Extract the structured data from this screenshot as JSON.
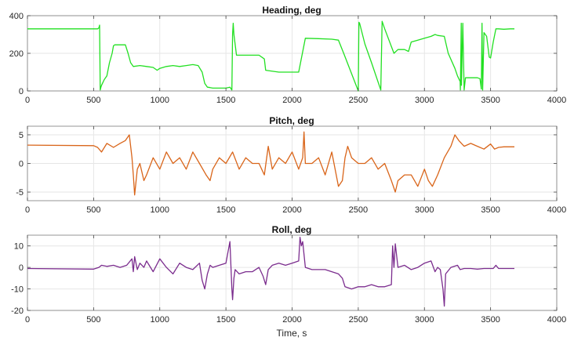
{
  "chart_data": [
    {
      "type": "line",
      "title": "Heading, deg",
      "xlabel": "",
      "ylabel": "",
      "xlim": [
        0,
        4000
      ],
      "ylim": [
        0,
        400
      ],
      "xticks": [
        0,
        500,
        1000,
        1500,
        2000,
        2500,
        3000,
        3500,
        4000
      ],
      "yticks": [
        0,
        200,
        400
      ],
      "grid": true,
      "color": "#22e022",
      "series": [
        {
          "name": "Heading",
          "x": [
            0,
            530,
            540,
            545,
            550,
            555,
            560,
            580,
            600,
            620,
            640,
            650,
            660,
            700,
            740,
            760,
            780,
            800,
            850,
            900,
            950,
            980,
            1000,
            1050,
            1100,
            1150,
            1200,
            1250,
            1290,
            1320,
            1340,
            1360,
            1380,
            1400,
            1450,
            1500,
            1530,
            1545,
            1550,
            1555,
            1560,
            1580,
            1600,
            1750,
            1790,
            1800,
            1900,
            1950,
            1960,
            2050,
            2100,
            2200,
            2300,
            2350,
            2390,
            2500,
            2505,
            2510,
            2550,
            2600,
            2670,
            2680,
            2700,
            2770,
            2800,
            2850,
            2880,
            2900,
            2950,
            3000,
            3050,
            3080,
            3100,
            3150,
            3180,
            3230,
            3250,
            3270,
            3272,
            3278,
            3280,
            3290,
            3300,
            3310,
            3330,
            3350,
            3400,
            3420,
            3430,
            3435,
            3440,
            3450,
            3470,
            3490,
            3500,
            3520,
            3540,
            3560,
            3600,
            3650,
            3680
          ],
          "y": [
            330,
            330,
            335,
            350,
            5,
            20,
            30,
            60,
            80,
            150,
            200,
            240,
            245,
            245,
            245,
            200,
            150,
            130,
            135,
            130,
            125,
            110,
            120,
            130,
            135,
            130,
            135,
            140,
            135,
            100,
            40,
            20,
            18,
            15,
            15,
            15,
            20,
            5,
            300,
            360,
            300,
            190,
            190,
            190,
            170,
            110,
            100,
            100,
            100,
            100,
            280,
            278,
            275,
            270,
            200,
            0,
            365,
            360,
            250,
            150,
            5,
            370,
            330,
            200,
            220,
            220,
            210,
            260,
            270,
            280,
            290,
            300,
            295,
            290,
            200,
            120,
            80,
            50,
            5,
            360,
            30,
            360,
            5,
            70,
            70,
            70,
            70,
            65,
            10,
            360,
            5,
            310,
            290,
            180,
            175,
            260,
            330,
            330,
            328,
            330,
            330
          ]
        }
      ]
    },
    {
      "type": "line",
      "title": "Pitch, deg",
      "xlabel": "",
      "ylabel": "",
      "xlim": [
        0,
        4000
      ],
      "ylim": [
        -6.5,
        6.5
      ],
      "xticks": [
        0,
        500,
        1000,
        1500,
        2000,
        2500,
        3000,
        3500,
        4000
      ],
      "yticks": [
        -5,
        0,
        5
      ],
      "grid": true,
      "color": "#d9651a",
      "series": [
        {
          "name": "Pitch",
          "x": [
            0,
            500,
            530,
            560,
            600,
            650,
            700,
            740,
            770,
            790,
            800,
            810,
            830,
            850,
            880,
            900,
            950,
            1000,
            1050,
            1100,
            1150,
            1200,
            1250,
            1300,
            1350,
            1380,
            1400,
            1450,
            1500,
            1550,
            1600,
            1650,
            1700,
            1750,
            1790,
            1820,
            1850,
            1900,
            1950,
            2000,
            2050,
            2080,
            2090,
            2100,
            2150,
            2200,
            2250,
            2300,
            2350,
            2380,
            2400,
            2420,
            2450,
            2500,
            2550,
            2600,
            2650,
            2700,
            2750,
            2780,
            2800,
            2850,
            2900,
            2950,
            3000,
            3030,
            3060,
            3100,
            3150,
            3200,
            3230,
            3260,
            3300,
            3350,
            3400,
            3450,
            3500,
            3530,
            3560,
            3600,
            3650,
            3680
          ],
          "y": [
            3.2,
            3.1,
            2.8,
            2,
            3.5,
            2.8,
            3.5,
            4,
            5,
            1,
            -2,
            -5.5,
            -1,
            0,
            -3,
            -2,
            1,
            -1,
            2,
            0,
            1,
            -1,
            2,
            0,
            -2,
            -3,
            -1,
            1,
            0,
            2,
            -1,
            1,
            0,
            0,
            -2,
            3,
            -1,
            1,
            0,
            2,
            -1,
            1,
            5.5,
            0,
            0,
            1,
            -2,
            2,
            -4,
            -3,
            1,
            3,
            1,
            0,
            0,
            1,
            -1,
            0,
            -3,
            -5,
            -3,
            -2,
            -2,
            -4,
            -1,
            -3,
            -4,
            -2,
            1,
            3,
            5,
            4,
            3,
            3.5,
            3,
            2.5,
            3.4,
            2.5,
            2.8,
            2.9,
            2.9,
            2.9
          ]
        }
      ]
    },
    {
      "type": "line",
      "title": "Roll, deg",
      "xlabel": "Time, s",
      "ylabel": "",
      "xlim": [
        0,
        4000
      ],
      "ylim": [
        -20,
        15
      ],
      "xticks": [
        0,
        500,
        1000,
        1500,
        2000,
        2500,
        3000,
        3500,
        4000
      ],
      "yticks": [
        -20,
        -10,
        0,
        10
      ],
      "grid": true,
      "color": "#7b2d8e",
      "series": [
        {
          "name": "Roll",
          "x": [
            0,
            500,
            540,
            560,
            600,
            650,
            700,
            750,
            790,
            800,
            810,
            830,
            850,
            880,
            900,
            950,
            1000,
            1050,
            1100,
            1150,
            1200,
            1250,
            1300,
            1320,
            1340,
            1360,
            1380,
            1400,
            1450,
            1500,
            1530,
            1545,
            1550,
            1560,
            1570,
            1600,
            1650,
            1700,
            1750,
            1780,
            1800,
            1820,
            1850,
            1900,
            1950,
            2000,
            2050,
            2060,
            2070,
            2080,
            2100,
            2150,
            2200,
            2250,
            2300,
            2350,
            2380,
            2400,
            2450,
            2500,
            2550,
            2600,
            2650,
            2700,
            2750,
            2760,
            2770,
            2780,
            2800,
            2850,
            2900,
            2950,
            3000,
            3050,
            3080,
            3100,
            3120,
            3140,
            3150,
            3160,
            3200,
            3250,
            3270,
            3300,
            3350,
            3400,
            3450,
            3500,
            3520,
            3540,
            3560,
            3600,
            3650,
            3680
          ],
          "y": [
            -0.5,
            -0.8,
            0,
            1,
            0.5,
            1,
            0,
            1,
            4,
            -2,
            5,
            -1,
            2,
            0,
            3,
            -2,
            4,
            0,
            -3,
            2,
            0,
            -1,
            2,
            -6,
            -10,
            -3,
            1,
            0,
            1,
            2,
            12,
            -10,
            -15,
            -5,
            -1,
            -3,
            -2,
            -2,
            0,
            -4,
            -8,
            -1,
            1,
            2,
            1,
            2,
            3,
            14,
            10,
            12,
            0,
            -1,
            -1,
            -1,
            -2,
            -3,
            -5,
            -9,
            -10,
            -9,
            -9,
            -8,
            -9,
            -9,
            -8,
            10,
            0,
            11,
            0,
            1,
            -1,
            0,
            2,
            3,
            -2,
            0,
            -1,
            -10,
            -18,
            -3,
            0,
            1,
            -1,
            -0.5,
            -0.5,
            -0.8,
            -0.5,
            -0.5,
            -0.5,
            1,
            -0.5,
            -0.5,
            -0.5,
            -0.5
          ]
        }
      ]
    }
  ]
}
